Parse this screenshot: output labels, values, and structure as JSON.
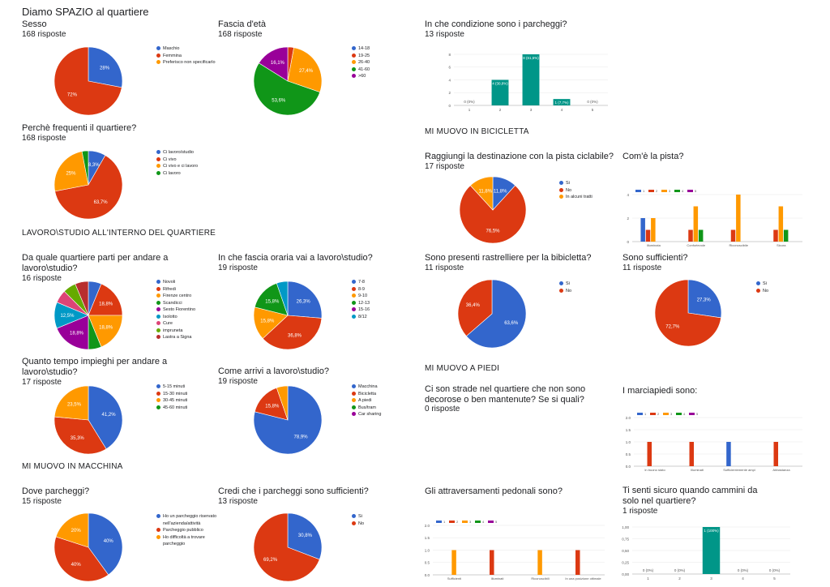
{
  "page": {
    "title": "Diamo SPAZIO al quartiere"
  },
  "sections": {
    "lavoro": "LAVORO\\STUDIO ALL'INTERNO DEL QUARTIERE",
    "macchina": "MI MUOVO IN MACCHINA",
    "bicicletta": "MI MUOVO IN BICICLETTA",
    "piedi": "MI MUOVO A PIEDI"
  },
  "texts": {
    "q_strade": {
      "title": "Ci son strade nel quartiere che non sono decorose o ben mantenute? Se si quali?",
      "responses": "0 risposte"
    },
    "q_marciapiedi": {
      "title": "I marciapiedi sono:"
    }
  },
  "chart_data": [
    {
      "id": "sesso",
      "type": "pie",
      "title": "Sesso",
      "responses": "168 risposte",
      "slices": [
        {
          "label": "Maschio",
          "value": 28,
          "display": "28%",
          "color": "#3366cc"
        },
        {
          "label": "Femmina",
          "value": 72,
          "display": "72%",
          "color": "#dc3912"
        },
        {
          "label": "Preferisco non specificarlo",
          "value": 0,
          "display": "",
          "color": "#ff9900"
        }
      ]
    },
    {
      "id": "eta",
      "type": "pie",
      "title": "Fascia d'età",
      "responses": "168 risposte",
      "slices": [
        {
          "label": "14-18",
          "value": 0,
          "display": "",
          "color": "#3366cc"
        },
        {
          "label": "19-25",
          "value": 2.9,
          "display": "",
          "color": "#dc3912"
        },
        {
          "label": "26-40",
          "value": 27.4,
          "display": "27,4%",
          "color": "#ff9900"
        },
        {
          "label": "41-60",
          "value": 53.6,
          "display": "53,6%",
          "color": "#109618"
        },
        {
          "label": ">60",
          "value": 16.1,
          "display": "16,1%",
          "color": "#990099"
        }
      ]
    },
    {
      "id": "frequenti",
      "type": "pie",
      "title": "Perchè frequenti il quartiere?",
      "responses": "168 risposte",
      "slices": [
        {
          "label": "Ci lavoro/studio",
          "value": 8.3,
          "display": "8,3%",
          "color": "#3366cc"
        },
        {
          "label": "Ci vivo",
          "value": 63.7,
          "display": "63,7%",
          "color": "#dc3912"
        },
        {
          "label": "Ci vivo e ci lavoro",
          "value": 25,
          "display": "25%",
          "color": "#ff9900"
        },
        {
          "label": "Ci lavoro",
          "value": 3,
          "display": "",
          "color": "#109618"
        }
      ]
    },
    {
      "id": "parti",
      "type": "pie",
      "title": "Da quale quartiere parti per andare a lavoro\\studio?",
      "responses": "16 risposte",
      "slices": [
        {
          "label": "Novoli",
          "value": 6.2,
          "display": "",
          "color": "#3366cc"
        },
        {
          "label": "Rifredi",
          "value": 18.8,
          "display": "18,8%",
          "color": "#dc3912"
        },
        {
          "label": "Firenze centro",
          "value": 18.8,
          "display": "18,8%",
          "color": "#ff9900"
        },
        {
          "label": "Scandicci",
          "value": 6.2,
          "display": "",
          "color": "#109618"
        },
        {
          "label": "Sesto Fiorentino",
          "value": 18.8,
          "display": "18,8%",
          "color": "#990099"
        },
        {
          "label": "Isolotto",
          "value": 12.5,
          "display": "12,5%",
          "color": "#0099c6"
        },
        {
          "label": "Cure",
          "value": 6.2,
          "display": "",
          "color": "#dd4477"
        },
        {
          "label": "impruneta",
          "value": 6.2,
          "display": "",
          "color": "#66aa00"
        },
        {
          "label": "Lastra a Signa",
          "value": 6.3,
          "display": "",
          "color": "#b82e2e"
        }
      ]
    },
    {
      "id": "fascia_oraria",
      "type": "pie",
      "title": "In che fascia oraria vai a lavoro\\studio?",
      "responses": "19 risposte",
      "slices": [
        {
          "label": "7-8",
          "value": 26.3,
          "display": "26,3%",
          "color": "#3366cc"
        },
        {
          "label": "8-9",
          "value": 36.8,
          "display": "36,8%",
          "color": "#dc3912"
        },
        {
          "label": "9-10",
          "value": 15.8,
          "display": "15,8%",
          "color": "#ff9900"
        },
        {
          "label": "12-13",
          "value": 15.8,
          "display": "15,8%",
          "color": "#109618"
        },
        {
          "label": "15-16",
          "value": 0,
          "display": "",
          "color": "#990099"
        },
        {
          "label": "8/12",
          "value": 5.3,
          "display": "",
          "color": "#0099c6"
        }
      ]
    },
    {
      "id": "tempo",
      "type": "pie",
      "title": "Quanto tempo impieghi per andare a lavoro\\studio?",
      "responses": "17 risposte",
      "slices": [
        {
          "label": "5-15 minuti",
          "value": 41.2,
          "display": "41,2%",
          "color": "#3366cc"
        },
        {
          "label": "15-30 minuti",
          "value": 35.3,
          "display": "35,3%",
          "color": "#dc3912"
        },
        {
          "label": "30-45 minuti",
          "value": 23.5,
          "display": "23,5%",
          "color": "#ff9900"
        },
        {
          "label": "45-60 minuti",
          "value": 0,
          "display": "",
          "color": "#109618"
        }
      ]
    },
    {
      "id": "arrivi",
      "type": "pie",
      "title": "Come arrivi a lavoro\\studio?",
      "responses": "19 risposte",
      "slices": [
        {
          "label": "Macchina",
          "value": 78.9,
          "display": "78,9%",
          "color": "#3366cc"
        },
        {
          "label": "Bicicletta",
          "value": 15.8,
          "display": "15,8%",
          "color": "#dc3912"
        },
        {
          "label": "A piedi",
          "value": 5.3,
          "display": "",
          "color": "#ff9900"
        },
        {
          "label": "Bus/tram",
          "value": 0,
          "display": "",
          "color": "#109618"
        },
        {
          "label": "Car sharing",
          "value": 0,
          "display": "",
          "color": "#990099"
        }
      ]
    },
    {
      "id": "parcheggi",
      "type": "pie",
      "title": "Dove parcheggi?",
      "responses": "15 risposte",
      "slices": [
        {
          "label": "Ho un parcheggio riservato nell'azienda/attività",
          "value": 40,
          "display": "40%",
          "color": "#3366cc"
        },
        {
          "label": "Parcheggio pubblico",
          "value": 40,
          "display": "40%",
          "color": "#dc3912"
        },
        {
          "label": "Ho difficoltà a trovare parcheggio",
          "value": 20,
          "display": "20%",
          "color": "#ff9900"
        }
      ]
    },
    {
      "id": "suff_parcheggi",
      "type": "pie",
      "title": "Credi che i parcheggi sono sufficienti?",
      "responses": "13 risposte",
      "slices": [
        {
          "label": "Si",
          "value": 30.8,
          "display": "30,8%",
          "color": "#3366cc"
        },
        {
          "label": "No",
          "value": 69.2,
          "display": "69,2%",
          "color": "#dc3912"
        }
      ]
    },
    {
      "id": "pista",
      "type": "pie",
      "title": "Raggiungi la destinazione con la pista ciclabile?",
      "responses": "17 risposte",
      "slices": [
        {
          "label": "Si",
          "value": 11.8,
          "display": "11,8%",
          "color": "#3366cc"
        },
        {
          "label": "No",
          "value": 76.5,
          "display": "76,5%",
          "color": "#dc3912"
        },
        {
          "label": "In alcuni tratti",
          "value": 11.8,
          "display": "11,8%",
          "color": "#ff9900"
        }
      ]
    },
    {
      "id": "rastrelliere",
      "type": "pie",
      "title": "Sono presenti rastrelliere per la bibicletta?",
      "responses": "11 risposte",
      "slices": [
        {
          "label": "Si",
          "value": 63.6,
          "display": "63,6%",
          "color": "#3366cc"
        },
        {
          "label": "No",
          "value": 36.4,
          "display": "36,4%",
          "color": "#dc3912"
        }
      ]
    },
    {
      "id": "sufficienti",
      "type": "pie",
      "title": "Sono sufficienti?",
      "responses": "11 risposte",
      "slices": [
        {
          "label": "Si",
          "value": 27.3,
          "display": "27,3%",
          "color": "#3366cc"
        },
        {
          "label": "No",
          "value": 72.7,
          "display": "72,7%",
          "color": "#dc3912"
        }
      ]
    },
    {
      "id": "cond_parcheggi",
      "type": "bar",
      "title": "In che condizione sono i parcheggi?",
      "responses": "13 risposte",
      "categories": [
        "1",
        "2",
        "3",
        "4",
        "5"
      ],
      "values": [
        0,
        4,
        8,
        1,
        0
      ],
      "labels": [
        "0 (0%)",
        "4 (30,8%)",
        "8 (61,5%)",
        "1 (7,7%)",
        "0 (0%)"
      ],
      "yticks": [
        "0",
        "2",
        "4",
        "6",
        "8"
      ],
      "ylim": [
        0,
        8
      ],
      "color": "#009688"
    },
    {
      "id": "sicuro",
      "type": "bar",
      "title": "Ti senti sicuro quando cammini da solo nel quartiere?",
      "responses": "1 risposte",
      "categories": [
        "1",
        "2",
        "3",
        "4",
        "5"
      ],
      "values": [
        0,
        0,
        1,
        0,
        0
      ],
      "labels": [
        "0 (0%)",
        "0 (0%)",
        "1 (100%)",
        "0 (0%)",
        "0 (0%)"
      ],
      "yticks": [
        "0,00",
        "0,25",
        "0,50",
        "0,75",
        "1,00"
      ],
      "ylim": [
        0,
        1
      ],
      "color": "#009688"
    },
    {
      "id": "com_pista",
      "type": "bar",
      "title": "Com'è la pista?",
      "categories": [
        "Illuminata",
        "Confortevole",
        "Riconoscibile",
        "Sicura"
      ],
      "series": [
        {
          "name": "1",
          "values": [
            2,
            0,
            0,
            0
          ],
          "color": "#3366cc"
        },
        {
          "name": "2",
          "values": [
            1,
            1,
            1,
            1
          ],
          "color": "#dc3912"
        },
        {
          "name": "3",
          "values": [
            2,
            3,
            4,
            3
          ],
          "color": "#ff9900"
        },
        {
          "name": "4",
          "values": [
            0,
            1,
            0,
            1
          ],
          "color": "#109618"
        },
        {
          "name": "5",
          "values": [
            0,
            0,
            0,
            0
          ],
          "color": "#990099"
        }
      ],
      "yticks": [
        "0",
        "2",
        "4"
      ],
      "ylim": [
        0,
        4
      ]
    },
    {
      "id": "marciapiedi",
      "type": "bar",
      "categories": [
        "In buono stato",
        "Illuminati",
        "Sufficientemente ampi",
        "Abbastanza"
      ],
      "series": [
        {
          "name": "1",
          "values": [
            0,
            0,
            1,
            0
          ],
          "color": "#3366cc"
        },
        {
          "name": "2",
          "values": [
            1,
            1,
            0,
            1
          ],
          "color": "#dc3912"
        },
        {
          "name": "3",
          "values": [
            0,
            0,
            0,
            0
          ],
          "color": "#ff9900"
        },
        {
          "name": "4",
          "values": [
            0,
            0,
            0,
            0
          ],
          "color": "#109618"
        },
        {
          "name": "5",
          "values": [
            0,
            0,
            0,
            0
          ],
          "color": "#990099"
        }
      ],
      "yticks": [
        "0.0",
        "0.5",
        "1.0",
        "1.5",
        "2.0"
      ],
      "ylim": [
        0,
        2
      ]
    },
    {
      "id": "attraversamenti",
      "type": "bar",
      "title": "Gli attraversamenti pedonali sono?",
      "categories": [
        "Sufficienti",
        "Illuminati",
        "Riconoscibili",
        "In una posizione ottimale"
      ],
      "series": [
        {
          "name": "1",
          "values": [
            0,
            0,
            0,
            0
          ],
          "color": "#3366cc"
        },
        {
          "name": "2",
          "values": [
            0,
            1,
            0,
            1
          ],
          "color": "#dc3912"
        },
        {
          "name": "3",
          "values": [
            1,
            0,
            1,
            0
          ],
          "color": "#ff9900"
        },
        {
          "name": "4",
          "values": [
            0,
            0,
            0,
            0
          ],
          "color": "#109618"
        },
        {
          "name": "5",
          "values": [
            0,
            0,
            0,
            0
          ],
          "color": "#990099"
        }
      ],
      "yticks": [
        "0.0",
        "0.5",
        "1.0",
        "1.5",
        "2.0"
      ],
      "ylim": [
        0,
        2
      ]
    }
  ]
}
